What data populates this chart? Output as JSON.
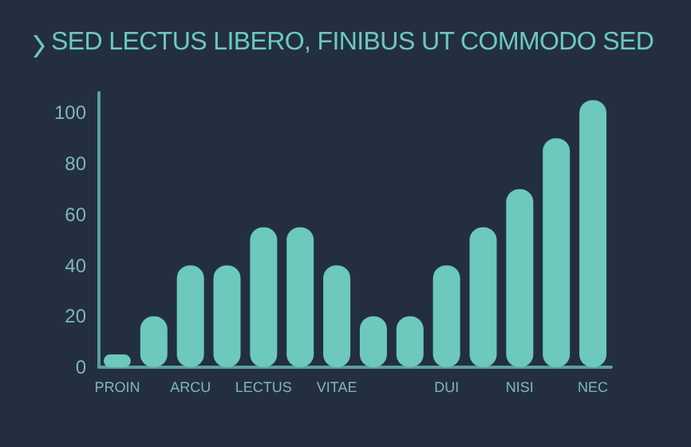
{
  "chart_data": {
    "type": "bar",
    "title": "SED LECTUS LIBERO, FINIBUS UT COMMODO SED",
    "categories": [
      "PROIN",
      null,
      "ARCU",
      null,
      "LECTUS",
      null,
      "VITAE",
      null,
      null,
      "DUI",
      null,
      "NISI",
      null,
      "NEC"
    ],
    "values": [
      5,
      20,
      40,
      40,
      55,
      55,
      40,
      20,
      20,
      40,
      55,
      70,
      90,
      105
    ],
    "color": "#6cc9bb",
    "ylim": [
      0,
      108
    ],
    "yticks": [
      0,
      20,
      40,
      60,
      80,
      100
    ]
  }
}
